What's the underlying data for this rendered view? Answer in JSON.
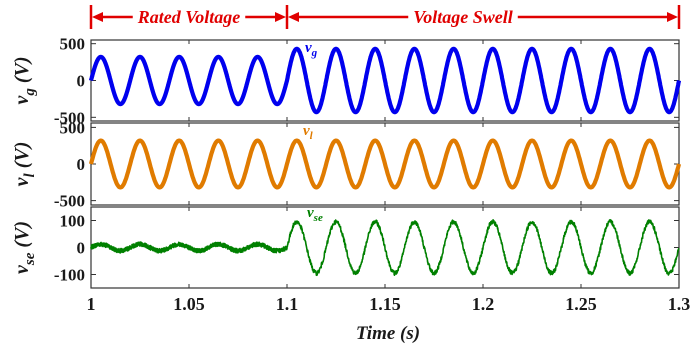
{
  "chart_data": [
    {
      "id": "vg",
      "type": "line",
      "title": "",
      "ylabel_main": "v",
      "ylabel_sub": "g",
      "ylabel_unit": " (V)",
      "inline_label_main": "v",
      "inline_label_sub": "g",
      "ylim": [
        -550,
        550
      ],
      "yticks": [
        500,
        0,
        -500
      ],
      "ytick_labels": [
        "500",
        "0",
        "-500"
      ],
      "color": "#0000ee",
      "series": [
        {
          "x": [
            1.0,
            1.1
          ],
          "frequency_hz": 50,
          "amplitude": 320
        },
        {
          "x": [
            1.1,
            1.3
          ],
          "frequency_hz": 50,
          "amplitude": 430
        }
      ]
    },
    {
      "id": "vl",
      "type": "line",
      "title": "",
      "ylabel_main": "v",
      "ylabel_sub": "l",
      "ylabel_unit": " (V)",
      "inline_label_main": "v",
      "inline_label_sub": "l",
      "ylim": [
        -560,
        560
      ],
      "yticks": [
        500,
        0,
        -500
      ],
      "ytick_labels": [
        "500",
        "0",
        "-500"
      ],
      "color": "#e07b00",
      "series": [
        {
          "x": [
            1.0,
            1.3
          ],
          "frequency_hz": 50,
          "amplitude": 320
        }
      ]
    },
    {
      "id": "vse",
      "type": "line",
      "title": "",
      "ylabel_main": "v",
      "ylabel_sub": "se",
      "ylabel_unit": " (V)",
      "inline_label_main": "v",
      "inline_label_sub": "se",
      "ylim": [
        -150,
        150
      ],
      "yticks": [
        100,
        0,
        -100
      ],
      "ytick_labels": [
        "100",
        "0",
        "-100"
      ],
      "color": "#008000",
      "series": [
        {
          "x": [
            1.0,
            1.1
          ],
          "frequency_hz": 50,
          "amplitude": 12
        },
        {
          "x": [
            1.1,
            1.3
          ],
          "frequency_hz": 50,
          "amplitude": 95
        }
      ]
    }
  ],
  "xaxis": {
    "label": "Time (s)",
    "xlim": [
      1.0,
      1.3
    ],
    "ticks": [
      1.0,
      1.05,
      1.1,
      1.15,
      1.2,
      1.25,
      1.3
    ],
    "tick_labels": [
      "1",
      "1.05",
      "1.1",
      "1.15",
      "1.2",
      "1.25",
      "1.3"
    ]
  },
  "annotations": {
    "rated_label": "Rated Voltage",
    "rated_range": [
      1.0,
      1.1
    ],
    "swell_label": "Voltage Swell",
    "swell_range": [
      1.1,
      1.3
    ],
    "color": "#e00000"
  }
}
